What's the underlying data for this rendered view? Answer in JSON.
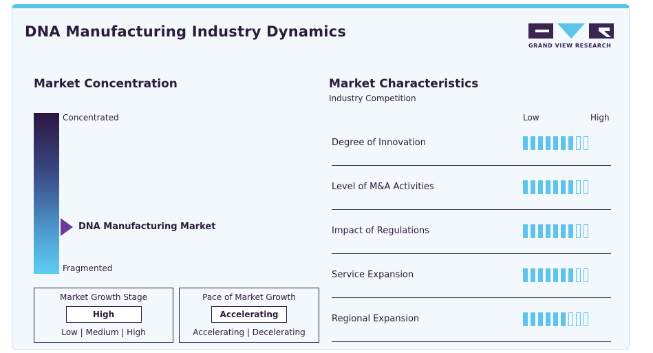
{
  "title": "DNA Manufacturing Industry Dynamics",
  "logo": {
    "text": "GRAND VIEW RESEARCH",
    "color": "#3a2450",
    "accent": "#5ec4e8"
  },
  "concentration": {
    "title": "Market Concentration",
    "top_label": "Concentrated",
    "bottom_label": "Fragmented",
    "market_label": "DNA Manufacturing Market",
    "level": 0.3
  },
  "growth_stage": {
    "title": "Market Growth Stage",
    "value": "High",
    "scale": "Low  |  Medium  |  High"
  },
  "growth_pace": {
    "title": "Pace of Market Growth",
    "value": "Accelerating",
    "scale": "Accelerating  |  Decelerating"
  },
  "characteristics": {
    "title": "Market Characteristics",
    "subtitle": "Industry Competition",
    "low_label": "Low",
    "high_label": "High",
    "total_segments": 9,
    "rows": [
      {
        "label": "Degree of Innovation",
        "filled": 7
      },
      {
        "label": "Level of M&A Activities",
        "filled": 7
      },
      {
        "label": "Impact of Regulations",
        "filled": 7
      },
      {
        "label": "Service Expansion",
        "filled": 7
      },
      {
        "label": "Regional Expansion",
        "filled": 6
      }
    ]
  }
}
